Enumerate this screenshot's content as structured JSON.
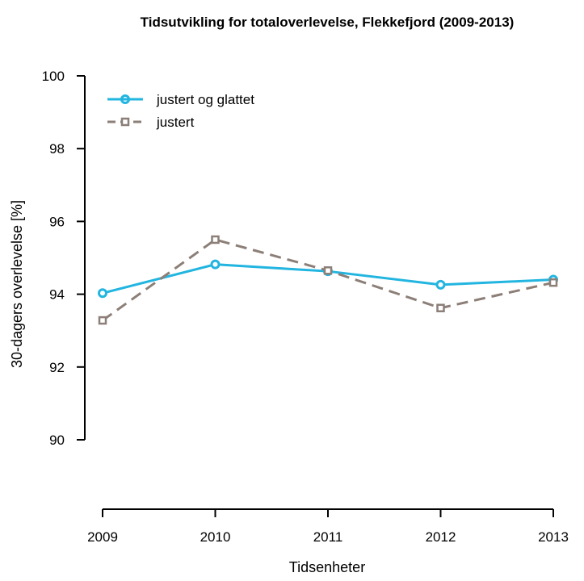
{
  "chart_data": {
    "type": "line",
    "title": "Tidsutvikling for totaloverlevelse, Flekkefjord (2009-2013)",
    "xlabel": "Tidsenheter",
    "ylabel": "30-dagers overlevelse [%]",
    "categories": [
      "2009",
      "2010",
      "2011",
      "2012",
      "2013"
    ],
    "ylim": [
      88.2,
      100
    ],
    "yticks": [
      90,
      92,
      94,
      96,
      98,
      100
    ],
    "grid": false,
    "legend_position": "top-left",
    "series": [
      {
        "name": "justert og glattet",
        "values": [
          94.03,
          94.82,
          94.63,
          94.26,
          94.4
        ],
        "color": "#22b5e0",
        "style": "solid",
        "marker": "circle"
      },
      {
        "name": "justert",
        "values": [
          93.28,
          95.5,
          94.65,
          93.62,
          94.32
        ],
        "color": "#8c7f78",
        "style": "dashed",
        "marker": "square"
      }
    ]
  }
}
